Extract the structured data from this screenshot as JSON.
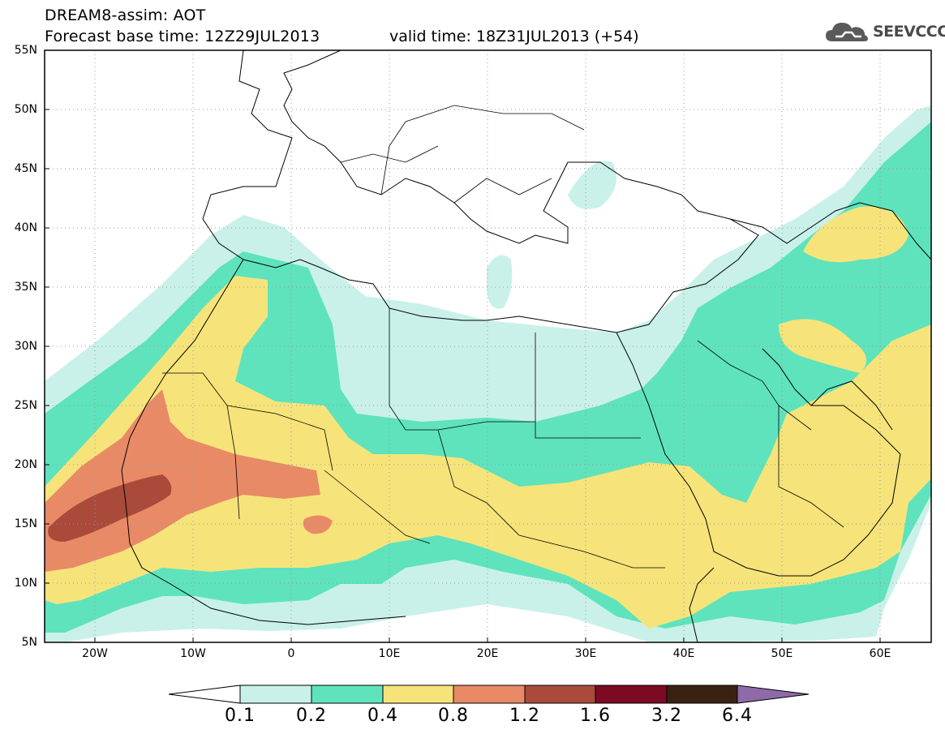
{
  "header": {
    "title_line1": "DREAM8-assim: AOT",
    "title_line2": "Forecast base time: 12Z29JUL2013",
    "valid_time": "valid time: 18Z31JUL2013 (+54)",
    "logo_text": "SEEVCCC"
  },
  "map": {
    "lat_labels": [
      "55N",
      "50N",
      "45N",
      "40N",
      "35N",
      "30N",
      "25N",
      "20N",
      "15N",
      "10N",
      "5N"
    ],
    "lon_labels": [
      "20W",
      "10W",
      "0",
      "10E",
      "20E",
      "30E",
      "40E",
      "50E",
      "60E"
    ],
    "extent": {
      "lon_min": -25,
      "lon_max": 65,
      "lat_min": 5,
      "lat_max": 55
    },
    "field": "Aerosol optical thickness (dust)"
  },
  "colorbar": {
    "labels": [
      "0.1",
      "0.2",
      "0.4",
      "0.8",
      "1.2",
      "1.6",
      "3.2",
      "6.4"
    ],
    "colors": [
      "#ffffff",
      "#c9f1e9",
      "#5ee3bd",
      "#f6e47a",
      "#e98a66",
      "#a94a3b",
      "#7c0a22",
      "#3a2212",
      "#8f6aa8"
    ]
  }
}
